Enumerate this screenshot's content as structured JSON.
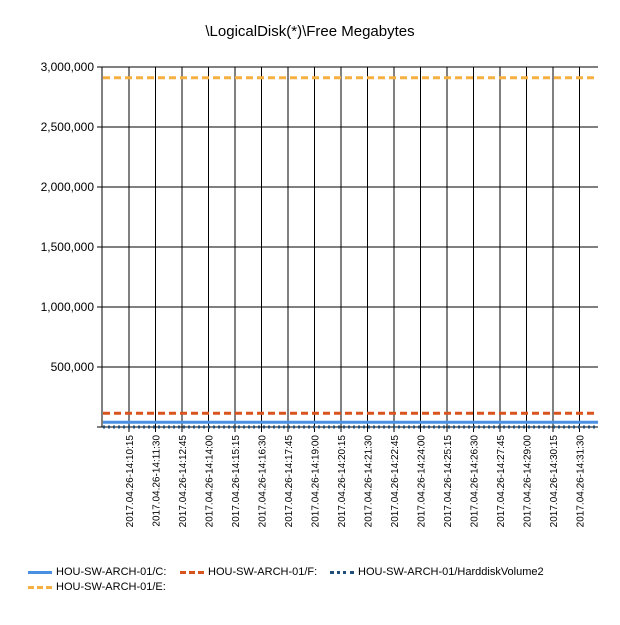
{
  "chart_data": {
    "type": "line",
    "title": "\\LogicalDisk(*)\\Free Megabytes",
    "xlabel": "",
    "ylabel": "",
    "x": [
      "2017.04.26-14:10:15",
      "2017.04.26-14:11:30",
      "2017.04.26-14:12:45",
      "2017.04.26-14:14:00",
      "2017.04.26-14:15:15",
      "2017.04.26-14:16:30",
      "2017.04.26-14:17:45",
      "2017.04.26-14:19:00",
      "2017.04.26-14:20:15",
      "2017.04.26-14:21:30",
      "2017.04.26-14:22:45",
      "2017.04.26-14:24:00",
      "2017.04.26-14:25:15",
      "2017.04.26-14:26:30",
      "2017.04.26-14:27:45",
      "2017.04.26-14:29:00",
      "2017.04.26-14:30:15",
      "2017.04.26-14:31:30"
    ],
    "ylim": [
      0,
      3000000
    ],
    "yticks": [
      "500,000",
      "1,000,000",
      "1,500,000",
      "2,000,000",
      "2,500,000",
      "3,000,000"
    ],
    "ytick_values": [
      500000,
      1000000,
      1500000,
      2000000,
      2500000,
      3000000
    ],
    "grid": true,
    "legend_position": "bottom",
    "series": [
      {
        "name": "HOU-SW-ARCH-01/C:",
        "color": "#4a90e2",
        "style": "solid",
        "value": 40000
      },
      {
        "name": "HOU-SW-ARCH-01/F:",
        "color": "#d9531e",
        "style": "dashed",
        "value": 115000
      },
      {
        "name": "HOU-SW-ARCH-01/HarddiskVolume2",
        "color": "#1f4e79",
        "style": "dotted",
        "value": 300
      },
      {
        "name": "HOU-SW-ARCH-01/E:",
        "color": "#f5b041",
        "style": "dashed",
        "value": 2910000
      }
    ]
  }
}
